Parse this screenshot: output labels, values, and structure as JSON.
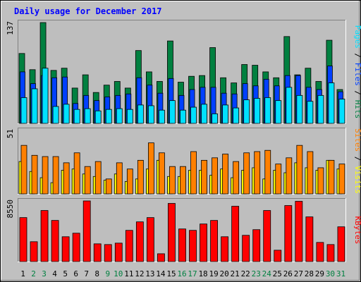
{
  "title": "Daily usage for December 2017",
  "colors": {
    "background": "#c0c0c0",
    "plot_background": "#bebebe",
    "hits": "#008040",
    "files": "#0040ff",
    "pages": "#00e0ff",
    "visits": "#ffff00",
    "sites": "#ff8000",
    "kbytes": "#ff0000",
    "title_text": "#0000ff",
    "weekday_label": "#000000",
    "weekend_label": "#008040"
  },
  "chart_data": [
    {
      "type": "bar",
      "panel": "hits_files_pages",
      "ymax_label": "137",
      "legend": [
        "Pages",
        "Files",
        "Hits"
      ],
      "legend_separator": " / ",
      "categories": [
        "1",
        "2",
        "3",
        "4",
        "5",
        "6",
        "7",
        "8",
        "9",
        "10",
        "11",
        "12",
        "13",
        "14",
        "15",
        "16",
        "17",
        "18",
        "19",
        "20",
        "21",
        "22",
        "23",
        "24",
        "25",
        "26",
        "27",
        "28",
        "29",
        "30",
        "31"
      ],
      "ymax": 137,
      "series": [
        {
          "name": "Hits",
          "color_key": "hits",
          "values": [
            95,
            73,
            137,
            72,
            75,
            48,
            66,
            42,
            52,
            57,
            48,
            99,
            70,
            57,
            112,
            56,
            64,
            65,
            103,
            62,
            55,
            80,
            79,
            70,
            62,
            118,
            66,
            75,
            57,
            113,
            46
          ]
        },
        {
          "name": "Files",
          "color_key": "files",
          "values": [
            70,
            54,
            65,
            62,
            63,
            27,
            38,
            31,
            36,
            38,
            40,
            62,
            52,
            41,
            61,
            38,
            46,
            49,
            49,
            41,
            40,
            54,
            51,
            60,
            51,
            65,
            65,
            49,
            46,
            78,
            43
          ]
        },
        {
          "name": "Pages",
          "color_key": "pages",
          "values": [
            35,
            47,
            75,
            23,
            26,
            19,
            20,
            17,
            19,
            20,
            19,
            25,
            24,
            18,
            31,
            18,
            22,
            26,
            13,
            25,
            21,
            32,
            34,
            35,
            31,
            49,
            38,
            30,
            38,
            55,
            33
          ]
        }
      ]
    },
    {
      "type": "bar",
      "panel": "visits_sites",
      "ymax_label": "51",
      "legend": [
        "Sites",
        "Visits"
      ],
      "legend_separator": " / ",
      "categories": [
        "1",
        "2",
        "3",
        "4",
        "5",
        "6",
        "7",
        "8",
        "9",
        "10",
        "11",
        "12",
        "13",
        "14",
        "15",
        "16",
        "17",
        "18",
        "19",
        "20",
        "21",
        "22",
        "23",
        "24",
        "25",
        "26",
        "27",
        "28",
        "29",
        "30",
        "31"
      ],
      "ymax": 51,
      "series": [
        {
          "name": "Sites",
          "color_key": "sites",
          "values": [
            39,
            31,
            30,
            30,
            25,
            33,
            22,
            26,
            12,
            25,
            20,
            27,
            41,
            33,
            22,
            22,
            34,
            27,
            29,
            32,
            26,
            33,
            34,
            35,
            24,
            29,
            39,
            34,
            21,
            27,
            24
          ]
        },
        {
          "name": "Visits",
          "color_key": "visits",
          "values": [
            26,
            18,
            13,
            9,
            19,
            20,
            16,
            14,
            11,
            16,
            10,
            12,
            20,
            27,
            14,
            14,
            19,
            19,
            15,
            20,
            13,
            19,
            21,
            12,
            19,
            17,
            25,
            21,
            19,
            27,
            20
          ]
        }
      ]
    },
    {
      "type": "bar",
      "panel": "kbytes",
      "ymax_label": "8550",
      "legend": [
        "KBytes"
      ],
      "legend_separator": "",
      "categories": [
        "1",
        "2",
        "3",
        "4",
        "5",
        "6",
        "7",
        "8",
        "9",
        "10",
        "11",
        "12",
        "13",
        "14",
        "15",
        "16",
        "17",
        "18",
        "19",
        "20",
        "21",
        "22",
        "23",
        "24",
        "25",
        "26",
        "27",
        "28",
        "29",
        "30",
        "31"
      ],
      "ymax": 8550,
      "series": [
        {
          "name": "KBytes",
          "color_key": "kbytes",
          "values": [
            6200,
            2800,
            7200,
            5800,
            3500,
            4000,
            8550,
            2500,
            2400,
            2600,
            4400,
            5600,
            6200,
            1100,
            8200,
            4600,
            4400,
            5300,
            5800,
            3500,
            7800,
            3700,
            4500,
            7200,
            1600,
            7900,
            8500,
            6300,
            2700,
            2400,
            4900
          ]
        }
      ]
    }
  ],
  "weekend_days": [
    "2",
    "3",
    "9",
    "10",
    "16",
    "17",
    "23",
    "24",
    "30",
    "31"
  ]
}
